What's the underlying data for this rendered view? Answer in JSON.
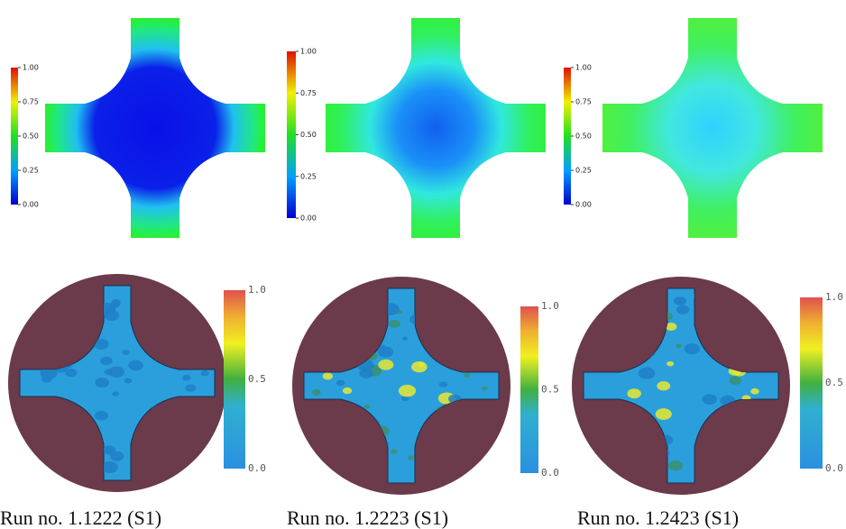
{
  "top_panels": [
    {
      "ticks": [
        "1.00",
        "0.75",
        "0.50",
        "0.25",
        "0.00"
      ]
    },
    {
      "ticks": [
        "1.00",
        "0.75",
        "0.50",
        "0.25",
        "0.00"
      ]
    },
    {
      "ticks": [
        "1.00",
        "0.75",
        "0.50",
        "0.25",
        "0.00"
      ]
    }
  ],
  "bottom_panels": [
    {
      "ticks": [
        "1.0",
        "0.5",
        "0.0"
      ],
      "caption": "Run no. 1.1222 (S1)"
    },
    {
      "ticks": [
        "1.0",
        "0.5",
        "0.0"
      ],
      "caption": "Run no. 1.2223 (S1)"
    },
    {
      "ticks": [
        "1.0",
        "0.5",
        "0.0"
      ],
      "caption": "Run no. 1.2423 (S1)"
    }
  ]
}
